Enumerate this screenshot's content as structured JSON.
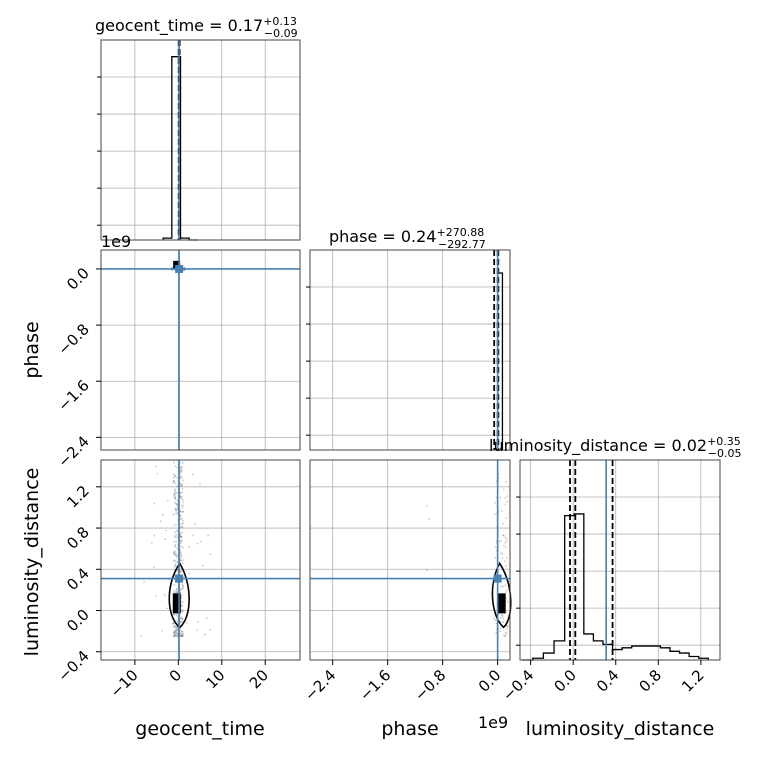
{
  "chart_data": {
    "type": "corner",
    "parameters": [
      "geocent_time",
      "phase",
      "luminosity_distance"
    ],
    "titles": [
      {
        "name": "geocent_time",
        "value": "0.17",
        "plus": "+0.13",
        "minus": "−0.09"
      },
      {
        "name": "phase",
        "value": "0.24",
        "plus": "+270.88",
        "minus": "−292.77"
      },
      {
        "name": "luminosity_distance",
        "value": "0.02",
        "plus": "+0.35",
        "minus": "−0.05"
      }
    ],
    "offset_labels": [
      "1e9",
      "1e9"
    ],
    "x_ticks": {
      "geocent_time": [
        "−10",
        "0",
        "10",
        "20"
      ],
      "phase": [
        "−2.4",
        "−1.6",
        "−0.8",
        "0.0"
      ],
      "luminosity_distance": [
        "−0.4",
        "0.0",
        "0.4",
        "0.8",
        "1.2"
      ]
    },
    "y_ticks": {
      "phase": [
        "0.0",
        "−0.8",
        "−1.6",
        "−2.4"
      ],
      "luminosity_distance": [
        "1.2",
        "0.8",
        "0.4",
        "0.0",
        "−0.4"
      ]
    },
    "xlim": {
      "geocent_time": [
        -17.8,
        28.0
      ],
      "phase": [
        -2730000000.0,
        180000000.0
      ],
      "luminosity_distance": [
        -0.5,
        1.38
      ]
    },
    "ylim": {
      "phase": [
        -2580000000.0,
        270000000.0
      ],
      "luminosity_distance": [
        -0.48,
        1.46
      ]
    },
    "truths": {
      "geocent_time": 0.17,
      "phase": 0.0,
      "luminosity_distance": 0.31
    },
    "truth_color": "#4682b4",
    "quantile_lines": {
      "geocent_time": [
        0.08,
        0.17,
        0.3
      ],
      "phase": [
        -50000000.0,
        0.0,
        10000000.0
      ],
      "luminosity_distance": [
        -0.03,
        0.02,
        0.37
      ]
    },
    "hist_geocent_time": {
      "edges": [
        -3.5,
        -1.5,
        0.5,
        2.5,
        4.5
      ],
      "counts": [
        0.01,
        0.99,
        0.01,
        0.0
      ]
    },
    "hist_phase": {
      "edges": [
        -30000000.0,
        0.0,
        70000000.0
      ],
      "counts": [
        0.0,
        1.0
      ]
    },
    "hist_luminosity_distance": {
      "edges": [
        -0.48,
        -0.38,
        -0.28,
        -0.18,
        -0.08,
        0.01,
        0.1,
        0.19,
        0.28,
        0.37,
        0.46,
        0.55,
        0.64,
        0.73,
        0.82,
        0.91,
        1.0,
        1.09,
        1.18,
        1.27
      ],
      "counts": [
        0,
        0.01,
        0.04,
        0.11,
        0.83,
        0.84,
        0.15,
        0.11,
        0.09,
        0.06,
        0.07,
        0.08,
        0.08,
        0.08,
        0.07,
        0.05,
        0.04,
        0.02,
        0.01
      ]
    },
    "grid": true,
    "type_note": ""
  }
}
